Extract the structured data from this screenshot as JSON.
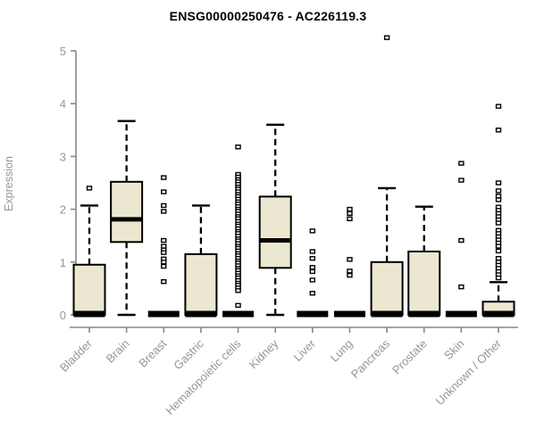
{
  "title": "ENSG00000250476 - AC226119.3",
  "chart_data": {
    "type": "box",
    "title": "ENSG00000250476 - AC226119.3",
    "xlabel": "",
    "ylabel": "Expression",
    "ylim": [
      0,
      5
    ],
    "yticks": [
      0,
      1,
      2,
      3,
      4,
      5
    ],
    "grid": false,
    "legend": "none",
    "colors": {
      "box_fill": "#ece7d0",
      "box_stroke": "#000000",
      "median": "#000000",
      "whisker": "#000000",
      "outlier_stroke": "#000000",
      "outlier_fill": "#ffffff",
      "axis_line": "#888888",
      "tick_text": "#969696",
      "axis_label_text": "#969696",
      "title_text": "#000000",
      "background": "#ffffff"
    },
    "categories": [
      "Bladder",
      "Brain",
      "Breast",
      "Gastric",
      "Hematopoietic cells",
      "Kidney",
      "Liver",
      "Lung",
      "Pancreas",
      "Prostate",
      "Skin",
      "Unknown / Other"
    ],
    "boxes": [
      {
        "category": "Bladder",
        "q1": 0,
        "median": 0,
        "q3": 0.95,
        "whisker_low": 0,
        "whisker_high": 2.07,
        "outliers": [
          2.4
        ]
      },
      {
        "category": "Brain",
        "q1": 1.38,
        "median": 1.81,
        "q3": 2.52,
        "whisker_low": 0,
        "whisker_high": 3.67,
        "outliers": []
      },
      {
        "category": "Breast",
        "q1": 0,
        "median": 0,
        "q3": 0,
        "whisker_low": 0,
        "whisker_high": 0,
        "outliers": [
          2.6,
          2.33,
          2.07,
          1.96,
          1.41,
          1.3,
          1.23,
          1.18,
          1.06,
          1.0,
          0.92,
          0.63
        ]
      },
      {
        "category": "Gastric",
        "q1": 0,
        "median": 0,
        "q3": 1.15,
        "whisker_low": 0,
        "whisker_high": 2.07,
        "outliers": []
      },
      {
        "category": "Hematopoietic cells",
        "q1": 0,
        "median": 0,
        "q3": 0,
        "whisker_low": 0,
        "whisker_high": 0,
        "outliers": [
          3.18,
          2.66,
          2.61,
          2.56,
          2.52,
          2.47,
          2.42,
          2.38,
          2.33,
          2.28,
          2.24,
          2.19,
          2.14,
          2.1,
          2.05,
          2.0,
          1.96,
          1.91,
          1.86,
          1.82,
          1.77,
          1.72,
          1.68,
          1.63,
          1.58,
          1.54,
          1.49,
          1.44,
          1.4,
          1.35,
          1.3,
          1.26,
          1.21,
          1.16,
          1.12,
          1.07,
          1.02,
          0.98,
          0.93,
          0.88,
          0.84,
          0.79,
          0.74,
          0.7,
          0.65,
          0.6,
          0.56,
          0.51,
          0.46,
          0.18
        ]
      },
      {
        "category": "Kidney",
        "q1": 0.89,
        "median": 1.41,
        "q3": 2.24,
        "whisker_low": 0,
        "whisker_high": 3.6,
        "outliers": []
      },
      {
        "category": "Liver",
        "q1": 0,
        "median": 0,
        "q3": 0,
        "whisker_low": 0,
        "whisker_high": 0,
        "outliers": [
          1.59,
          1.2,
          1.07,
          0.9,
          0.82,
          0.66,
          0.41
        ]
      },
      {
        "category": "Lung",
        "q1": 0,
        "median": 0,
        "q3": 0,
        "whisker_low": 0,
        "whisker_high": 0,
        "outliers": [
          2.0,
          1.92,
          1.82,
          1.05,
          0.83,
          0.75
        ]
      },
      {
        "category": "Pancreas",
        "q1": 0,
        "median": 0,
        "q3": 1.0,
        "whisker_low": 0,
        "whisker_high": 2.4,
        "outliers": [
          5.25
        ]
      },
      {
        "category": "Prostate",
        "q1": 0,
        "median": 0,
        "q3": 1.2,
        "whisker_low": 0,
        "whisker_high": 2.05,
        "outliers": []
      },
      {
        "category": "Skin",
        "q1": 0,
        "median": 0,
        "q3": 0,
        "whisker_low": 0,
        "whisker_high": 0,
        "outliers": [
          2.87,
          2.55,
          1.41,
          0.53
        ]
      },
      {
        "category": "Unknown / Other",
        "q1": 0,
        "median": 0,
        "q3": 0.25,
        "whisker_low": 0,
        "whisker_high": 0.62,
        "outliers": [
          3.95,
          3.5,
          2.5,
          2.35,
          2.25,
          2.18,
          2.04,
          1.98,
          1.92,
          1.86,
          1.8,
          1.74,
          1.6,
          1.54,
          1.48,
          1.42,
          1.36,
          1.3,
          1.21,
          1.07,
          1.0,
          0.94,
          0.88,
          0.82,
          0.76,
          0.7
        ]
      }
    ]
  }
}
